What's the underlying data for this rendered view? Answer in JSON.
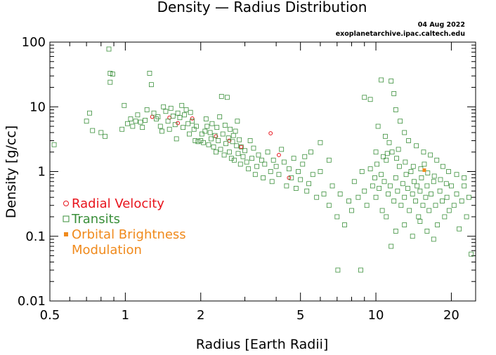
{
  "meta": {
    "date": "04 Aug 2022",
    "source": "exoplanetarchive.ipac.caltech.edu"
  },
  "chart_data": {
    "type": "scatter",
    "title": "Density — Radius Distribution",
    "xlabel": "Radius [Earth Radii]",
    "ylabel": "Density [g/cc]",
    "x_scale": "log",
    "y_scale": "log",
    "xlim": [
      0.5,
      25
    ],
    "ylim": [
      0.01,
      100
    ],
    "grid": false,
    "legend_position": "left",
    "x_ticks": [
      {
        "value": 0.5,
        "label": "0.5"
      },
      {
        "value": 1,
        "label": "1"
      },
      {
        "value": 2,
        "label": "2"
      },
      {
        "value": 5,
        "label": "5"
      },
      {
        "value": 10,
        "label": "10"
      },
      {
        "value": 20,
        "label": "20"
      }
    ],
    "y_ticks": [
      {
        "value": 0.01,
        "label": "0.01"
      },
      {
        "value": 0.1,
        "label": "0.1"
      },
      {
        "value": 1,
        "label": "1"
      },
      {
        "value": 10,
        "label": "10"
      },
      {
        "value": 100,
        "label": "100"
      }
    ],
    "series": [
      {
        "name": "Radial Velocity",
        "label_lines": [
          "Radial Velocity"
        ],
        "marker": "circle",
        "color": "#e8141c",
        "points": [
          [
            1.28,
            7.0
          ],
          [
            1.5,
            6.8
          ],
          [
            1.62,
            5.6
          ],
          [
            1.85,
            6.6
          ],
          [
            2.3,
            3.5
          ],
          [
            2.6,
            3.0
          ],
          [
            2.9,
            2.4
          ],
          [
            3.8,
            3.9
          ],
          [
            4.1,
            1.8
          ],
          [
            4.5,
            0.8
          ]
        ]
      },
      {
        "name": "Transits",
        "label_lines": [
          "Transits"
        ],
        "marker": "square",
        "color": "#3a8f3a",
        "points": [
          [
            0.52,
            2.6
          ],
          [
            0.7,
            6.0
          ],
          [
            0.72,
            8.0
          ],
          [
            0.74,
            4.3
          ],
          [
            0.8,
            4.0
          ],
          [
            0.83,
            3.5
          ],
          [
            0.86,
            78.0
          ],
          [
            0.87,
            33.0
          ],
          [
            0.89,
            32.0
          ],
          [
            0.87,
            24.0
          ],
          [
            0.97,
            4.5
          ],
          [
            0.99,
            10.5
          ],
          [
            1.02,
            5.5
          ],
          [
            1.05,
            6.5
          ],
          [
            1.07,
            5.0
          ],
          [
            1.1,
            6.0
          ],
          [
            1.12,
            7.5
          ],
          [
            1.15,
            5.8
          ],
          [
            1.17,
            4.8
          ],
          [
            1.2,
            6.2
          ],
          [
            1.22,
            9.0
          ],
          [
            1.25,
            33.0
          ],
          [
            1.27,
            22.0
          ],
          [
            1.3,
            8.0
          ],
          [
            1.33,
            6.5
          ],
          [
            1.35,
            7.0
          ],
          [
            1.38,
            5.0
          ],
          [
            1.4,
            4.2
          ],
          [
            1.42,
            10.0
          ],
          [
            1.45,
            8.5
          ],
          [
            1.48,
            6.0
          ],
          [
            1.5,
            4.5
          ],
          [
            1.52,
            9.5
          ],
          [
            1.55,
            7.2
          ],
          [
            1.58,
            5.3
          ],
          [
            1.6,
            3.2
          ],
          [
            1.62,
            8.0
          ],
          [
            1.65,
            6.8
          ],
          [
            1.68,
            10.5
          ],
          [
            1.7,
            4.8
          ],
          [
            1.72,
            7.5
          ],
          [
            1.75,
            9.0
          ],
          [
            1.78,
            5.5
          ],
          [
            1.8,
            3.8
          ],
          [
            1.82,
            8.2
          ],
          [
            1.85,
            6.0
          ],
          [
            1.88,
            4.5
          ],
          [
            1.9,
            3.0
          ],
          [
            1.92,
            5.0
          ],
          [
            1.95,
            2.9
          ],
          [
            2.0,
            3.0
          ],
          [
            2.02,
            3.8
          ],
          [
            2.05,
            2.8
          ],
          [
            2.08,
            4.2
          ],
          [
            2.1,
            6.5
          ],
          [
            2.12,
            5.0
          ],
          [
            2.15,
            2.6
          ],
          [
            2.18,
            4.0
          ],
          [
            2.2,
            3.2
          ],
          [
            2.22,
            5.5
          ],
          [
            2.25,
            2.4
          ],
          [
            2.28,
            3.6
          ],
          [
            2.3,
            2.0
          ],
          [
            2.32,
            4.8
          ],
          [
            2.35,
            3.0
          ],
          [
            2.38,
            7.0
          ],
          [
            2.4,
            2.2
          ],
          [
            2.42,
            14.5
          ],
          [
            2.45,
            3.8
          ],
          [
            2.48,
            1.8
          ],
          [
            2.5,
            5.2
          ],
          [
            2.52,
            2.7
          ],
          [
            2.55,
            14.0
          ],
          [
            2.58,
            3.3
          ],
          [
            2.6,
            2.0
          ],
          [
            2.62,
            4.5
          ],
          [
            2.65,
            1.6
          ],
          [
            2.68,
            2.9
          ],
          [
            2.7,
            3.6
          ],
          [
            2.72,
            1.5
          ],
          [
            2.75,
            4.2
          ],
          [
            2.78,
            2.5
          ],
          [
            2.8,
            6.0
          ],
          [
            2.82,
            1.9
          ],
          [
            2.85,
            3.1
          ],
          [
            2.88,
            1.3
          ],
          [
            2.9,
            2.4
          ],
          [
            2.95,
            1.7
          ],
          [
            3.0,
            2.1
          ],
          [
            3.05,
            1.4
          ],
          [
            3.1,
            1.1
          ],
          [
            3.15,
            3.0
          ],
          [
            3.2,
            1.6
          ],
          [
            3.25,
            2.3
          ],
          [
            3.3,
            0.9
          ],
          [
            3.35,
            1.2
          ],
          [
            3.4,
            1.8
          ],
          [
            3.5,
            1.5
          ],
          [
            3.55,
            0.8
          ],
          [
            3.6,
            1.3
          ],
          [
            3.7,
            2.0
          ],
          [
            3.8,
            1.0
          ],
          [
            3.85,
            0.7
          ],
          [
            3.9,
            1.5
          ],
          [
            4.0,
            1.2
          ],
          [
            4.1,
            0.9
          ],
          [
            4.2,
            2.2
          ],
          [
            4.3,
            1.4
          ],
          [
            4.4,
            0.6
          ],
          [
            4.5,
            1.1
          ],
          [
            4.6,
            0.8
          ],
          [
            4.7,
            1.6
          ],
          [
            4.8,
            0.55
          ],
          [
            4.9,
            1.0
          ],
          [
            5.0,
            0.75
          ],
          [
            5.1,
            1.3
          ],
          [
            5.3,
            0.5
          ],
          [
            5.4,
            0.65
          ],
          [
            5.6,
            0.9
          ],
          [
            5.8,
            0.4
          ],
          [
            6.0,
            2.8
          ],
          [
            6.2,
            0.45
          ],
          [
            6.5,
            0.3
          ],
          [
            6.7,
            0.6
          ],
          [
            7.0,
            0.2
          ],
          [
            7.05,
            0.03
          ],
          [
            7.2,
            0.45
          ],
          [
            7.5,
            0.15
          ],
          [
            7.8,
            0.35
          ],
          [
            8.0,
            0.25
          ],
          [
            8.2,
            0.7
          ],
          [
            8.5,
            0.4
          ],
          [
            8.7,
            0.03
          ],
          [
            8.8,
            1.0
          ],
          [
            9.0,
            0.5
          ],
          [
            9.2,
            0.3
          ],
          [
            9.5,
            1.1
          ],
          [
            9.7,
            0.6
          ],
          [
            9.9,
            0.8
          ],
          [
            10.0,
            0.4
          ],
          [
            10.1,
            1.3
          ],
          [
            10.3,
            0.55
          ],
          [
            10.5,
            0.9
          ],
          [
            10.6,
            0.25
          ],
          [
            10.8,
            0.7
          ],
          [
            11.0,
            1.5
          ],
          [
            11.2,
            0.45
          ],
          [
            11.4,
            0.6
          ],
          [
            11.6,
            2.0
          ],
          [
            11.8,
            0.35
          ],
          [
            12.0,
            0.8
          ],
          [
            12.2,
            0.5
          ],
          [
            12.4,
            1.2
          ],
          [
            12.6,
            0.3
          ],
          [
            12.8,
            0.65
          ],
          [
            13.0,
            0.4
          ],
          [
            13.2,
            0.9
          ],
          [
            13.4,
            0.55
          ],
          [
            13.6,
            0.25
          ],
          [
            13.8,
            1.0
          ],
          [
            14.0,
            0.45
          ],
          [
            14.2,
            0.7
          ],
          [
            14.4,
            0.35
          ],
          [
            14.6,
            0.6
          ],
          [
            14.8,
            0.2
          ],
          [
            15.0,
            0.5
          ],
          [
            15.2,
            0.8
          ],
          [
            15.4,
            0.3
          ],
          [
            15.6,
            1.3
          ],
          [
            15.8,
            0.4
          ],
          [
            16.0,
            0.6
          ],
          [
            16.3,
            0.25
          ],
          [
            16.6,
            0.45
          ],
          [
            17.0,
            0.7
          ],
          [
            17.3,
            0.3
          ],
          [
            17.6,
            0.15
          ],
          [
            18.0,
            0.5
          ],
          [
            18.4,
            0.35
          ],
          [
            18.8,
            0.2
          ],
          [
            19.2,
            0.4
          ],
          [
            19.6,
            0.25
          ],
          [
            20.0,
            0.6
          ],
          [
            20.5,
            0.3
          ],
          [
            21.0,
            0.45
          ],
          [
            21.5,
            0.13
          ],
          [
            22.0,
            0.35
          ],
          [
            22.5,
            0.6
          ],
          [
            23.0,
            0.2
          ],
          [
            23.5,
            0.4
          ],
          [
            24.0,
            0.053
          ],
          [
            9.0,
            14.0
          ],
          [
            9.5,
            13.0
          ],
          [
            10.5,
            26.0
          ],
          [
            11.5,
            25.0
          ],
          [
            11.8,
            16.0
          ],
          [
            12.0,
            9.0
          ],
          [
            12.5,
            6.0
          ],
          [
            13.0,
            4.0
          ],
          [
            10.2,
            5.0
          ],
          [
            10.9,
            3.5
          ],
          [
            11.3,
            2.8
          ],
          [
            12.3,
            2.2
          ],
          [
            13.5,
            3.0
          ],
          [
            14.5,
            2.5
          ],
          [
            15.5,
            2.0
          ],
          [
            16.5,
            1.8
          ],
          [
            17.5,
            1.5
          ],
          [
            18.5,
            1.2
          ],
          [
            19.5,
            1.0
          ],
          [
            21.0,
            0.9
          ],
          [
            22.5,
            0.8
          ],
          [
            10.0,
            2.0
          ],
          [
            10.7,
            1.7
          ],
          [
            11.1,
            1.9
          ],
          [
            12.1,
            1.6
          ],
          [
            13.1,
            1.4
          ],
          [
            14.1,
            1.2
          ],
          [
            15.1,
            1.1
          ],
          [
            16.1,
            0.95
          ],
          [
            17.1,
            0.85
          ],
          [
            18.1,
            0.75
          ],
          [
            19.1,
            0.65
          ],
          [
            11.0,
            0.2
          ],
          [
            12.0,
            0.12
          ],
          [
            13.0,
            0.15
          ],
          [
            14.0,
            0.1
          ],
          [
            15.0,
            0.17
          ],
          [
            16.0,
            0.12
          ],
          [
            17.0,
            0.09
          ],
          [
            11.5,
            0.07
          ],
          [
            6.5,
            1.5
          ],
          [
            6.0,
            1.0
          ],
          [
            5.5,
            2.0
          ],
          [
            5.2,
            1.7
          ]
        ]
      },
      {
        "name": "Orbital Brightness Modulation",
        "label_lines": [
          "Orbital Brightness",
          "Modulation"
        ],
        "marker": "filled-square",
        "color": "#f08a1c",
        "points": [
          [
            15.6,
            1.05
          ]
        ]
      }
    ]
  }
}
